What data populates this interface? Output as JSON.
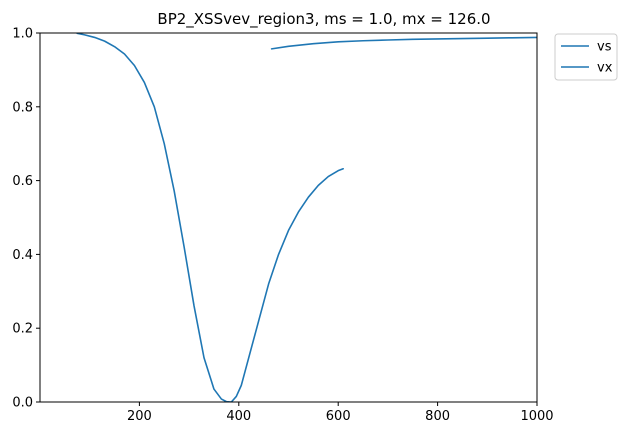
{
  "chart_data": {
    "type": "line",
    "title": "BP2_XSSvev_region3, ms = 1.0, mx = 126.0",
    "xlabel": "",
    "ylabel": "",
    "xlim": [
      0,
      1000
    ],
    "ylim": [
      0,
      1.0
    ],
    "xticks": [
      200,
      400,
      600,
      800,
      1000
    ],
    "xtick_labels": [
      "200",
      "400",
      "600",
      "800",
      "1000"
    ],
    "yticks": [
      0.0,
      0.2,
      0.4,
      0.6,
      0.8,
      1.0
    ],
    "ytick_labels": [
      "0.0",
      "0.2",
      "0.4",
      "0.6",
      "0.8",
      "1.0"
    ],
    "grid": false,
    "legend_position": "outside-top-right",
    "series": [
      {
        "name": "vs",
        "color": "#1f77b4",
        "x": [
          466,
          500,
          550,
          600,
          650,
          700,
          750,
          800,
          850,
          900,
          950,
          1000
        ],
        "y": [
          0.957,
          0.964,
          0.971,
          0.976,
          0.979,
          0.981,
          0.983,
          0.984,
          0.985,
          0.986,
          0.987,
          0.988
        ]
      },
      {
        "name": "vx",
        "color": "#1f77b4",
        "x": [
          75,
          90,
          110,
          130,
          150,
          170,
          190,
          210,
          230,
          250,
          270,
          290,
          310,
          330,
          350,
          365,
          375,
          385,
          395,
          405,
          420,
          440,
          460,
          480,
          500,
          520,
          540,
          560,
          580,
          600,
          610
        ],
        "y": [
          0.999,
          0.995,
          0.988,
          0.978,
          0.963,
          0.943,
          0.912,
          0.866,
          0.8,
          0.7,
          0.572,
          0.42,
          0.26,
          0.12,
          0.035,
          0.008,
          0.001,
          0.0,
          0.015,
          0.045,
          0.12,
          0.22,
          0.32,
          0.4,
          0.465,
          0.515,
          0.555,
          0.587,
          0.611,
          0.627,
          0.632
        ]
      }
    ]
  }
}
